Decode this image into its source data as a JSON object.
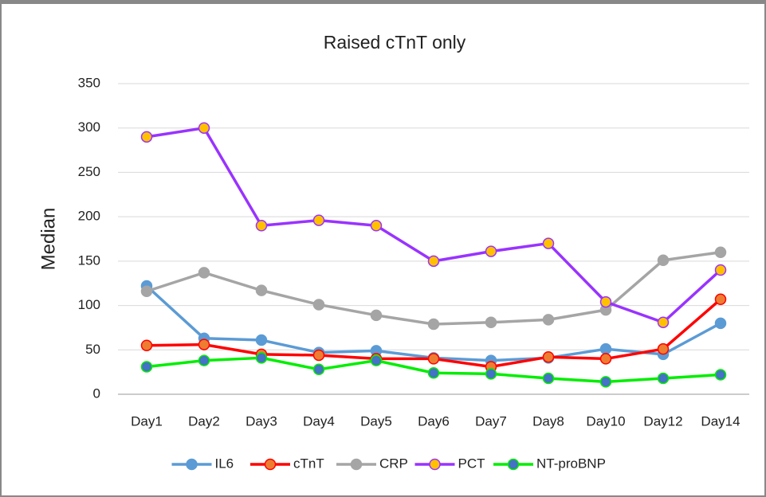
{
  "chart_data": {
    "type": "line",
    "title": "Raised cTnT only",
    "y_label": "Median",
    "categories": [
      "Day1",
      "Day2",
      "Day3",
      "Day4",
      "Day5",
      "Day6",
      "Day7",
      "Day8",
      "Day10",
      "Day12",
      "Day14"
    ],
    "series": [
      {
        "name": "IL6",
        "color": "#5b9bd5",
        "marker_color": "#5b9bd5",
        "values": [
          122,
          63,
          61,
          47,
          49,
          41,
          38,
          41,
          51,
          45,
          80
        ]
      },
      {
        "name": "cTnT",
        "color": "#ff0000",
        "marker_color": "#ed7d31",
        "values": [
          55,
          56,
          45,
          44,
          40,
          40,
          31,
          42,
          40,
          51,
          107
        ]
      },
      {
        "name": "CRP",
        "color": "#a5a5a5",
        "marker_color": "#a5a5a5",
        "values": [
          116,
          137,
          117,
          101,
          89,
          79,
          81,
          84,
          95,
          151,
          160
        ]
      },
      {
        "name": "PCT",
        "color": "#9933ff",
        "marker_color": "#ffc000",
        "values": [
          290,
          300,
          190,
          196,
          190,
          150,
          161,
          170,
          104,
          81,
          140
        ]
      },
      {
        "name": "NT-proBNP",
        "color": "#00ee00",
        "marker_color": "#4472c4",
        "values": [
          31,
          38,
          41,
          28,
          38,
          24,
          23,
          18,
          14,
          18,
          22
        ]
      }
    ],
    "ylim": [
      0,
      350
    ],
    "yticks": [
      0,
      50,
      100,
      150,
      200,
      250,
      300,
      350
    ],
    "grid": true,
    "legend": "bottom"
  }
}
